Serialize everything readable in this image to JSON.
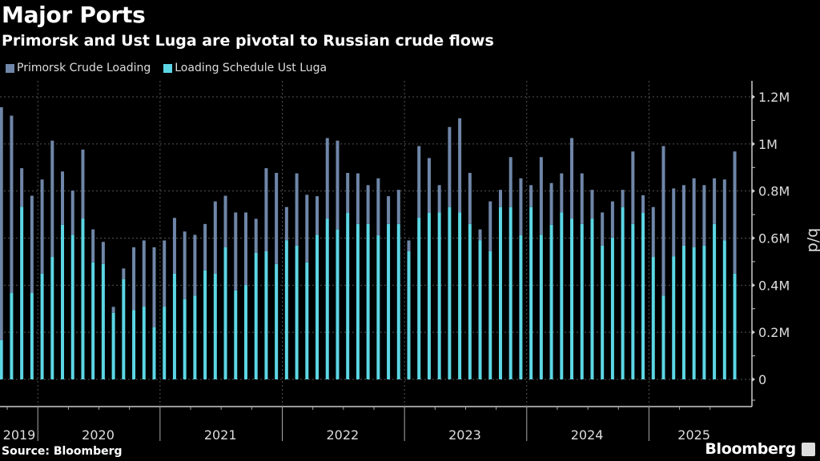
{
  "title": "Major Ports",
  "subtitle": "Primorsk and Ust Luga are pivotal to Russian crude flows",
  "source": "Source: Bloomberg",
  "brand": "Bloomberg",
  "colors": {
    "primorsk": "#6f86a8",
    "ust_luga": "#5cd6e4",
    "background": "#000000",
    "grid": "#555555"
  },
  "chart_data": {
    "type": "bar",
    "stacked": true,
    "frequency": "monthly",
    "x_start": "2019-09",
    "x_end": "2025-09",
    "year_labels": [
      "2019",
      "2020",
      "2021",
      "2022",
      "2023",
      "2024",
      "2025"
    ],
    "ylabel": "b/d",
    "ylim": [
      0,
      1200000
    ],
    "y_ticks": [
      0,
      200000,
      400000,
      600000,
      800000,
      1000000,
      1200000
    ],
    "y_tick_labels": [
      "0",
      "0.2M",
      "0.4M",
      "0.6M",
      "0.8M",
      "1M",
      "1.2M"
    ],
    "y_axis_side": "right",
    "grid": true,
    "legend_position": "top-left",
    "series": [
      {
        "name": "Loading Schedule Ust Luga",
        "color": "#5cd6e4",
        "values": [
          167000,
          367000,
          733000,
          367000,
          449000,
          520000,
          657000,
          614000,
          683000,
          497000,
          490000,
          283000,
          425000,
          295000,
          309000,
          221000,
          309000,
          449000,
          341000,
          356000,
          463000,
          449000,
          561000,
          378000,
          401000,
          538000,
          544000,
          490000,
          591000,
          568000,
          497000,
          614000,
          683000,
          637000,
          707000,
          660000,
          660000,
          612000,
          660000,
          660000,
          544000,
          687000,
          707000,
          709000,
          732000,
          709000,
          660000,
          591000,
          544000,
          732000,
          732000,
          612000,
          732000,
          614000,
          657000,
          709000,
          683000,
          660000,
          683000,
          568000,
          602000,
          732000,
          660000,
          707000,
          520000,
          356000,
          523000,
          568000,
          561000,
          568000,
          660000,
          590000,
          449000
        ]
      },
      {
        "name": "Primorsk Crude Loading",
        "color": "#6f86a8",
        "values": [
          989000,
          753000,
          164000,
          413000,
          400000,
          494000,
          226000,
          188000,
          293000,
          140000,
          94000,
          25000,
          46000,
          266000,
          281000,
          340000,
          281000,
          237000,
          287000,
          258000,
          197000,
          307000,
          219000,
          331000,
          308000,
          144000,
          353000,
          387000,
          141000,
          307000,
          287000,
          164000,
          342000,
          377000,
          170000,
          215000,
          165000,
          242000,
          118000,
          145000,
          46000,
          304000,
          233000,
          116000,
          340000,
          400000,
          217000,
          46000,
          212000,
          73000,
          212000,
          242000,
          93000,
          330000,
          177000,
          166000,
          342000,
          215000,
          122000,
          141000,
          154000,
          73000,
          308000,
          75000,
          212000,
          635000,
          288000,
          257000,
          293000,
          257000,
          194000,
          259000,
          519000
        ]
      }
    ]
  }
}
